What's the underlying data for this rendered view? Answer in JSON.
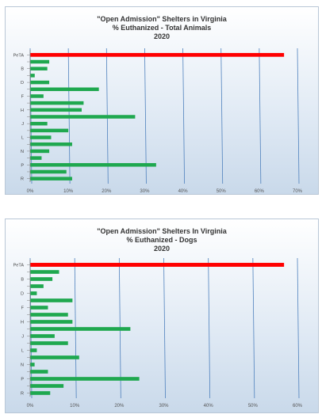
{
  "chart_data": [
    {
      "type": "bar",
      "orientation": "horizontal",
      "title": "\"Open Admission\" Shelters in Virginia",
      "subtitle": "% Euthanized - Total Animals",
      "subtitle2": "2020",
      "categories": [
        "PeTA",
        "",
        "B",
        "",
        "D",
        "",
        "F",
        "",
        "H",
        "",
        "J",
        "",
        "L",
        "",
        "N",
        "",
        "P",
        "",
        "R"
      ],
      "values": [
        66.5,
        5,
        4.5,
        1.2,
        5,
        18,
        3.5,
        14,
        13.5,
        27.5,
        4.5,
        10,
        5.5,
        11,
        5,
        3,
        33,
        9.5,
        11
      ],
      "xticks": [
        "0%",
        "10%",
        "20%",
        "30%",
        "40%",
        "50%",
        "60%",
        "70%"
      ],
      "xlim": [
        0,
        70
      ],
      "grid": true,
      "colors": {
        "highlight": "#ff0000",
        "bars": "#1fa84f",
        "grid": "#4f81bd"
      }
    },
    {
      "type": "bar",
      "orientation": "horizontal",
      "title": "\"Open Admission\" Shelters In Virginia",
      "subtitle": "% Euthanized - Dogs",
      "subtitle2": "2020",
      "categories": [
        "PeTA",
        "",
        "B",
        "",
        "D",
        "",
        "F",
        "",
        "H",
        "",
        "J",
        "",
        "L",
        "",
        "N",
        "",
        "P",
        "",
        "R"
      ],
      "values": [
        57,
        6.5,
        5,
        3,
        1.5,
        9.5,
        4,
        8.5,
        9.5,
        22.5,
        5.5,
        8.5,
        1.5,
        11,
        1,
        4,
        24.5,
        7.5,
        4.5
      ],
      "xticks": [
        "0%",
        "10%",
        "20%",
        "30%",
        "40%",
        "50%",
        "60%"
      ],
      "xlim": [
        0,
        60
      ],
      "grid": true,
      "colors": {
        "highlight": "#ff0000",
        "bars": "#1fa84f",
        "grid": "#4f81bd"
      }
    }
  ]
}
